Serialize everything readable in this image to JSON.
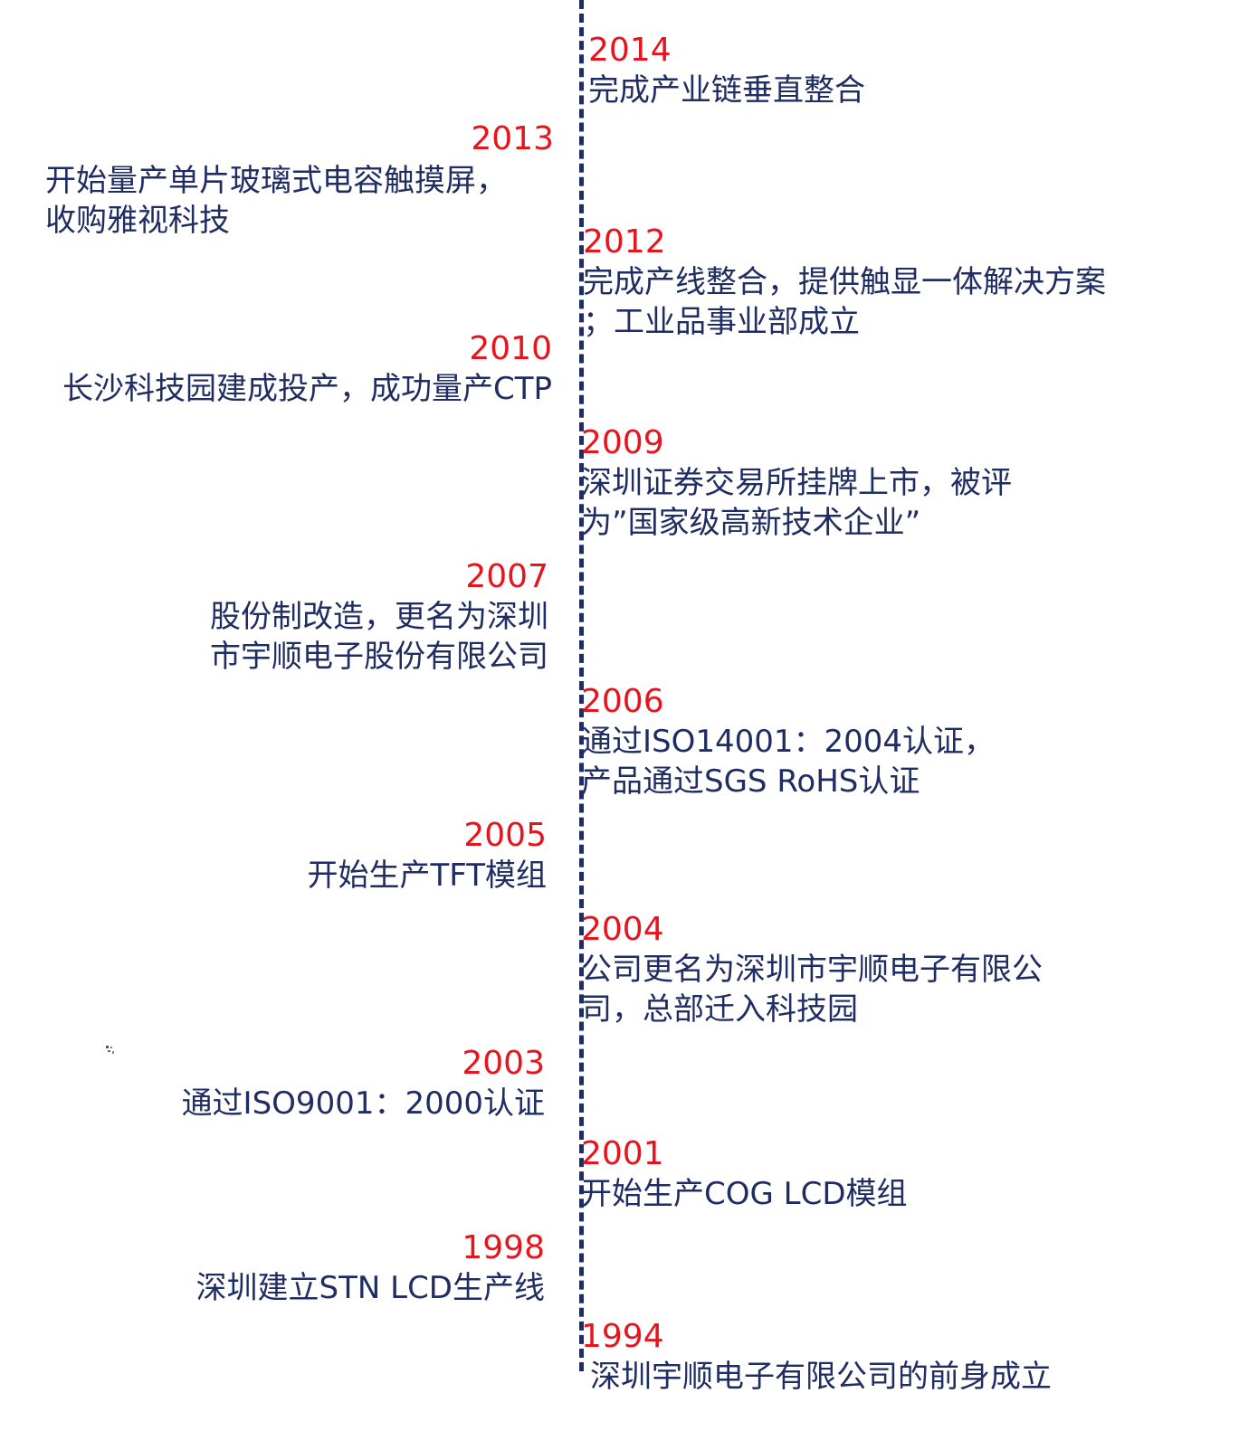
{
  "timeline": {
    "events": [
      {
        "year": "2014",
        "lines": [
          "完成产业链垂直整合"
        ]
      },
      {
        "year": "2013",
        "lines": [
          "开始量产单片玻璃式电容触摸屏，",
          "收购雅视科技"
        ]
      },
      {
        "year": "2012",
        "lines": [
          "完成产线整合，提供触显一体解决方案",
          "；工业品事业部成立"
        ]
      },
      {
        "year": "2010",
        "lines": [
          "长沙科技园建成投产，成功量产CTP"
        ]
      },
      {
        "year": "2009",
        "lines": [
          "深圳证券交易所挂牌上市，被评",
          "为”国家级高新技术企业”"
        ]
      },
      {
        "year": "2007",
        "lines": [
          "股份制改造，更名为深圳",
          "市宇顺电子股份有限公司"
        ]
      },
      {
        "year": "2006",
        "lines": [
          "通过ISO14001：2004认证，",
          "产品通过SGS RoHS认证"
        ]
      },
      {
        "year": "2005",
        "lines": [
          "开始生产TFT模组"
        ]
      },
      {
        "year": "2004",
        "lines": [
          "公司更名为深圳市宇顺电子有限公",
          "司，总部迁入科技园"
        ]
      },
      {
        "year": "2003",
        "lines": [
          "通过ISO9001：2000认证"
        ]
      },
      {
        "year": "2001",
        "lines": [
          "开始生产COG LCD模组"
        ]
      },
      {
        "year": "1998",
        "lines": [
          "深圳建立STN LCD生产线"
        ]
      },
      {
        "year": "1994",
        "lines": [
          "深圳宇顺电子有限公司的前身成立"
        ]
      }
    ]
  },
  "colors": {
    "year": "#e8141d",
    "text": "#1f2d62",
    "axis": "#1f2e5e"
  }
}
